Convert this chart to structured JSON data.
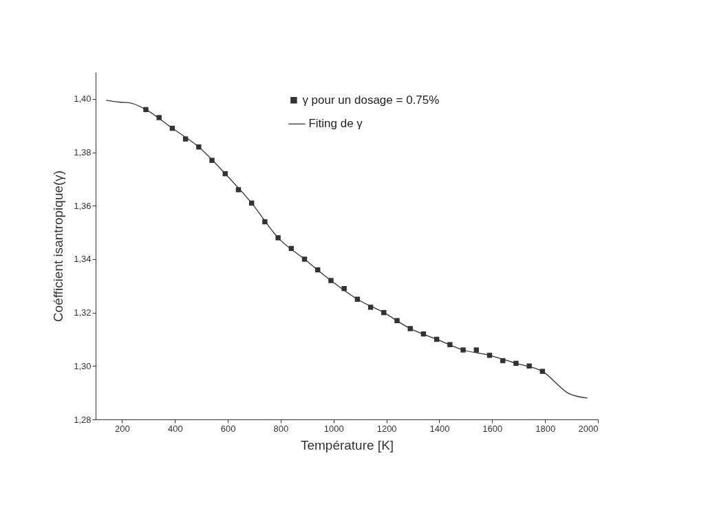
{
  "chart_data": {
    "type": "scatter",
    "xlabel": "Température [K]",
    "ylabel": "Coéfficient isantropique(γ)",
    "xlim": [
      100,
      2000
    ],
    "xticks": [
      200,
      400,
      600,
      800,
      1000,
      1200,
      1400,
      1600,
      1800,
      2000
    ],
    "ylim": [
      1.28,
      1.41
    ],
    "yticks": [
      {
        "value": 1.28,
        "label": "1,28"
      },
      {
        "value": 1.3,
        "label": "1,30"
      },
      {
        "value": 1.32,
        "label": "1,32"
      },
      {
        "value": 1.34,
        "label": "1,34"
      },
      {
        "value": 1.36,
        "label": "1,36"
      },
      {
        "value": 1.38,
        "label": "1,38"
      },
      {
        "value": 1.4,
        "label": "1,40"
      }
    ],
    "grid": false,
    "legend": "top right",
    "series": [
      {
        "name": "γ pour un dosage = 0.75%",
        "marker": "square",
        "color": "#333333",
        "x": [
          290,
          340,
          390,
          440,
          490,
          540,
          590,
          640,
          690,
          740,
          790,
          840,
          890,
          940,
          990,
          1040,
          1090,
          1140,
          1190,
          1240,
          1290,
          1340,
          1390,
          1440,
          1490,
          1540,
          1590,
          1640,
          1690,
          1740,
          1790
        ],
        "values": [
          1.396,
          1.393,
          1.389,
          1.385,
          1.382,
          1.377,
          1.372,
          1.366,
          1.361,
          1.354,
          1.348,
          1.344,
          1.34,
          1.336,
          1.332,
          1.329,
          1.325,
          1.322,
          1.32,
          1.317,
          1.314,
          1.312,
          1.31,
          1.308,
          1.306,
          1.306,
          1.304,
          1.302,
          1.301,
          1.3,
          1.298
        ]
      },
      {
        "name": "Fiting de γ",
        "type": "line",
        "color": "#333333",
        "x": [
          140,
          190,
          230,
          290,
          390,
          490,
          590,
          690,
          790,
          890,
          990,
          1090,
          1190,
          1290,
          1390,
          1490,
          1590,
          1690,
          1790,
          1890,
          1960
        ],
        "values": [
          1.3995,
          1.3988,
          1.3985,
          1.396,
          1.389,
          1.382,
          1.372,
          1.361,
          1.348,
          1.34,
          1.332,
          1.325,
          1.32,
          1.314,
          1.31,
          1.306,
          1.304,
          1.301,
          1.298,
          1.2897,
          1.288
        ]
      }
    ]
  }
}
